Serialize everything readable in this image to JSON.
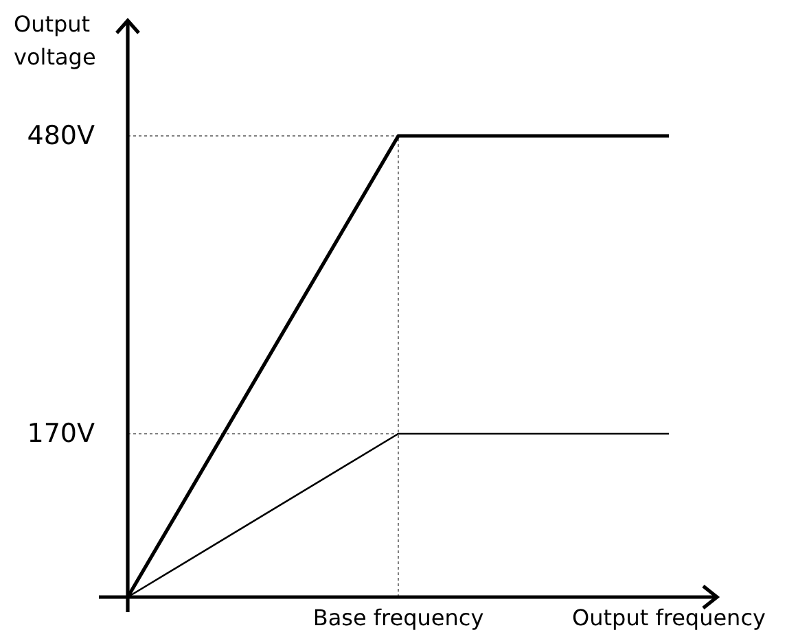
{
  "chart_data": {
    "type": "line",
    "ylabel": "Output voltage",
    "categories": [
      null,
      "Base frequency",
      "Output frequency"
    ],
    "series": [
      {
        "color": "#000000",
        "values": [
          0,
          480,
          480
        ]
      },
      {
        "color": "#000000",
        "values": [
          0,
          170,
          170
        ]
      }
    ],
    "ylim": [
      0,
      600
    ],
    "yticks": [
      {
        "value": 480,
        "label": "480V"
      },
      {
        "value": 170,
        "label": "170V"
      }
    ],
    "ref_lines": [
      {
        "axis": "y",
        "value": 480,
        "color": "#808080",
        "line_style": "dotted"
      },
      {
        "axis": "y",
        "value": 170,
        "color": "#808080",
        "line_style": "dotted"
      },
      {
        "axis": "x",
        "value": "Base frequency",
        "color": "#808080",
        "line_style": "dotted"
      }
    ]
  }
}
